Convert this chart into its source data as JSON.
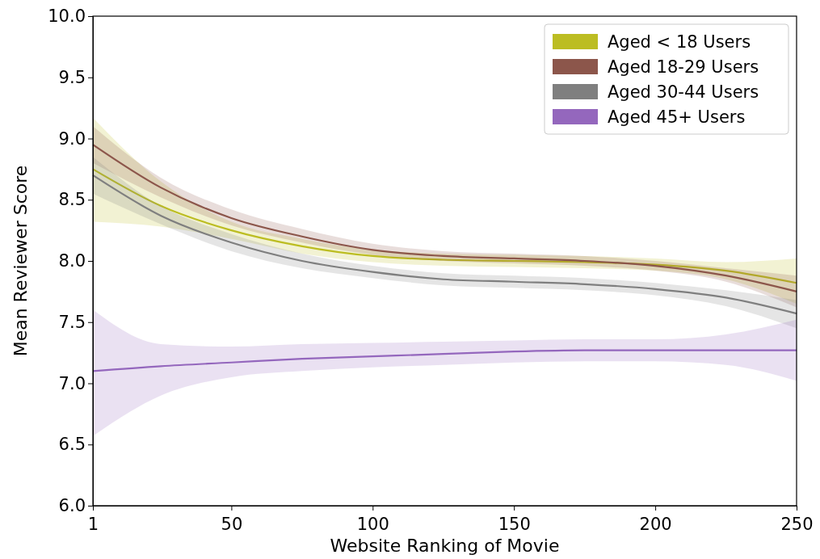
{
  "chart_data": {
    "type": "line",
    "xlabel": "Website Ranking of Movie",
    "ylabel": "Mean Reviewer Score",
    "x": [
      1,
      25,
      50,
      75,
      100,
      125,
      150,
      175,
      200,
      225,
      250
    ],
    "xlim": [
      1,
      250
    ],
    "xticks": [
      1,
      50,
      100,
      150,
      200,
      250
    ],
    "ylim": [
      6,
      10
    ],
    "yticks": [
      {
        "value": 6,
        "label": "6.0"
      },
      {
        "value": 6.5,
        "label": "6.5"
      },
      {
        "value": 7,
        "label": "7.0"
      },
      {
        "value": 7.5,
        "label": "7.5"
      },
      {
        "value": 8,
        "label": "8.0"
      },
      {
        "value": 8.5,
        "label": "8.5"
      },
      {
        "value": 9,
        "label": "9.0"
      },
      {
        "value": 9.5,
        "label": "9.5"
      },
      {
        "value": 10,
        "label": "10.0"
      }
    ],
    "grid": false,
    "legend": "top right",
    "marker": "none",
    "line_style": "solid",
    "series": [
      {
        "name": "Aged < 18 Users",
        "color": "#bcbd22",
        "values": [
          8.75,
          8.45,
          8.25,
          8.12,
          8.04,
          8.01,
          8.0,
          7.99,
          7.97,
          7.92,
          7.82
        ],
        "lower": [
          8.32,
          8.28,
          8.18,
          8.06,
          7.99,
          7.96,
          7.95,
          7.94,
          7.92,
          7.85,
          7.65
        ],
        "upper": [
          9.17,
          8.65,
          8.32,
          8.18,
          8.09,
          8.06,
          8.05,
          8.04,
          8.02,
          7.99,
          8.02
        ]
      },
      {
        "name": "Aged 18-29 Users",
        "color": "#8c564b",
        "values": [
          8.95,
          8.6,
          8.35,
          8.2,
          8.09,
          8.04,
          8.02,
          8.0,
          7.96,
          7.88,
          7.75
        ],
        "lower": [
          8.8,
          8.52,
          8.29,
          8.15,
          8.05,
          8.0,
          7.98,
          7.96,
          7.92,
          7.83,
          7.62
        ],
        "upper": [
          9.1,
          8.68,
          8.42,
          8.26,
          8.14,
          8.08,
          8.06,
          8.04,
          8.0,
          7.94,
          7.88
        ]
      },
      {
        "name": "Aged 30-44 Users",
        "color": "#7f7f7f",
        "values": [
          8.7,
          8.37,
          8.15,
          8.0,
          7.91,
          7.85,
          7.83,
          7.81,
          7.77,
          7.7,
          7.57
        ],
        "lower": [
          8.55,
          8.3,
          8.08,
          7.94,
          7.86,
          7.8,
          7.78,
          7.76,
          7.72,
          7.63,
          7.45
        ],
        "upper": [
          8.85,
          8.45,
          8.22,
          8.06,
          7.96,
          7.9,
          7.88,
          7.86,
          7.82,
          7.76,
          7.68
        ]
      },
      {
        "name": "Aged 45+ Users",
        "color": "#9467bd",
        "values": [
          7.1,
          7.14,
          7.17,
          7.2,
          7.22,
          7.24,
          7.26,
          7.27,
          7.27,
          7.27,
          7.27
        ],
        "lower": [
          6.57,
          6.9,
          7.05,
          7.1,
          7.13,
          7.15,
          7.17,
          7.18,
          7.18,
          7.15,
          7.02
        ],
        "upper": [
          7.6,
          7.32,
          7.3,
          7.32,
          7.33,
          7.34,
          7.35,
          7.36,
          7.36,
          7.4,
          7.52
        ]
      }
    ]
  }
}
